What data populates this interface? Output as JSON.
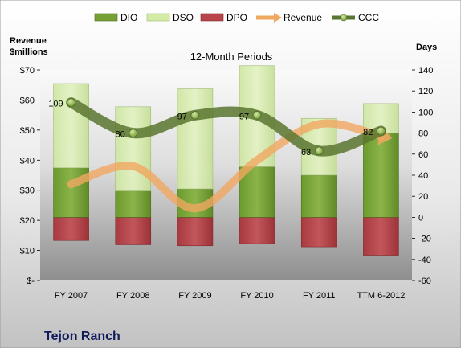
{
  "chart_data": {
    "type": "bar",
    "title": "12-Month Periods",
    "company": "Tejon Ranch",
    "left_axis": {
      "label_line1": "Revenue",
      "label_line2": "$millions",
      "ylim": [
        0,
        70
      ],
      "ticks": [
        0,
        10,
        20,
        30,
        40,
        50,
        60,
        70
      ],
      "tick_labels": [
        "$-",
        "$10",
        "$20",
        "$30",
        "$40",
        "$50",
        "$60",
        "$70"
      ]
    },
    "right_axis": {
      "label": "Days",
      "ylim": [
        -60,
        140
      ],
      "ticks": [
        -60,
        -40,
        -20,
        0,
        20,
        40,
        60,
        80,
        100,
        120,
        140
      ],
      "tick_labels": [
        "-60",
        "-40",
        "-20",
        "0",
        "20",
        "40",
        "60",
        "80",
        "100",
        "120",
        "140"
      ]
    },
    "categories": [
      "FY 2007",
      "FY 2008",
      "FY 2009",
      "FY 2010",
      "FY 2011",
      "TTM 6-2012"
    ],
    "series": [
      {
        "name": "DIO",
        "type": "stacked-bar",
        "axis": "right",
        "color": "#77A033",
        "values": [
          47,
          25,
          27,
          48,
          40,
          80
        ]
      },
      {
        "name": "DSO",
        "type": "stacked-bar",
        "axis": "right",
        "color": "#D4EBA4",
        "values": [
          80,
          80,
          95,
          96,
          54,
          28
        ]
      },
      {
        "name": "DPO",
        "type": "stacked-bar",
        "axis": "right",
        "color": "#B84449",
        "values": [
          -22,
          -26,
          -27,
          -25,
          -28,
          -36
        ]
      },
      {
        "name": "Revenue",
        "type": "line",
        "axis": "left",
        "color": "#F0A860",
        "values": [
          32,
          38,
          24,
          40,
          52,
          48
        ]
      },
      {
        "name": "CCC",
        "type": "line",
        "axis": "right",
        "color": "#5A7530",
        "values": [
          109,
          80,
          97,
          97,
          63,
          82
        ]
      }
    ],
    "ccc_labels": [
      "109",
      "80",
      "97",
      "97",
      "63",
      "82"
    ],
    "legend": [
      "DIO",
      "DSO",
      "DPO",
      "Revenue",
      "CCC"
    ],
    "legend_position": "top",
    "grid": false
  }
}
